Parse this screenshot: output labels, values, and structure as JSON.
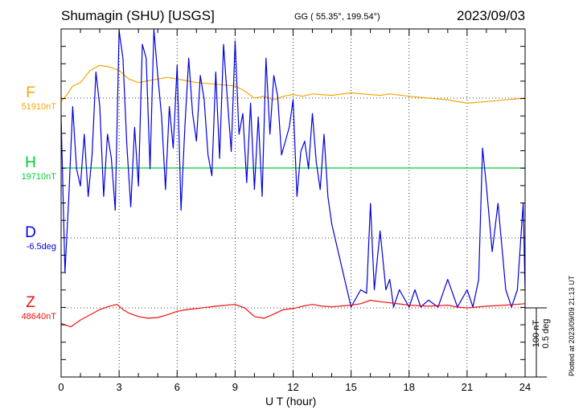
{
  "header": {
    "station": "Shumagin (SHU)  [USGS]",
    "coords": "GG ( 55.35°, 199.54°)",
    "date": "2023/09/03"
  },
  "footer": {
    "plotted": "Plotted at 2023/09/09 21:13 UT",
    "scale_nt": "100 nT",
    "scale_deg": "0.5 deg"
  },
  "chart_data": {
    "type": "line",
    "title": "Shumagin (SHU)  [USGS]",
    "xlabel": "U T (hour)",
    "ylabel": "",
    "xlim": [
      0,
      24
    ],
    "xticks": [
      "0",
      "3",
      "6",
      "9",
      "12",
      "15",
      "18",
      "21",
      "24"
    ],
    "grid": true,
    "scale_bar": {
      "field": "100 nT",
      "declination": "0.5 deg"
    },
    "series": [
      {
        "name": "F",
        "baseline_label": "51910nT",
        "color": "#f5a500",
        "x": [
          0,
          0.3,
          0.6,
          1,
          1.5,
          2,
          2.5,
          3,
          3.5,
          4,
          4.5,
          5,
          5.5,
          6,
          6.5,
          7,
          8,
          9,
          9.5,
          10,
          10.5,
          11,
          11.5,
          12,
          12.5,
          13,
          14,
          15,
          16,
          16.5,
          17,
          18,
          19,
          20,
          21,
          22,
          23,
          24
        ],
        "values": [
          -10,
          10,
          35,
          45,
          80,
          95,
          90,
          80,
          55,
          45,
          50,
          55,
          60,
          55,
          50,
          45,
          40,
          35,
          20,
          0,
          5,
          -5,
          5,
          10,
          5,
          12,
          8,
          15,
          10,
          8,
          12,
          5,
          0,
          -5,
          -15,
          -10,
          -5,
          0
        ]
      },
      {
        "name": "H",
        "baseline_label": "19710nT",
        "color": "#00cc33",
        "x": [
          0,
          24
        ],
        "values": [
          0,
          0
        ]
      },
      {
        "name": "D",
        "baseline_label": "-6.5deg",
        "color": "#0000dd",
        "x": [
          0,
          0.2,
          0.4,
          0.6,
          0.8,
          1.0,
          1.2,
          1.4,
          1.6,
          1.8,
          2.0,
          2.2,
          2.4,
          2.6,
          2.8,
          3.0,
          3.2,
          3.4,
          3.6,
          3.8,
          4.0,
          4.2,
          4.4,
          4.6,
          4.8,
          5.0,
          5.2,
          5.4,
          5.6,
          5.8,
          6.0,
          6.2,
          6.4,
          6.6,
          6.8,
          7.0,
          7.2,
          7.4,
          7.6,
          7.8,
          8.0,
          8.2,
          8.4,
          8.6,
          8.8,
          9.0,
          9.2,
          9.4,
          9.6,
          9.8,
          10.0,
          10.2,
          10.4,
          10.6,
          10.8,
          11.0,
          11.2,
          11.4,
          11.6,
          11.8,
          12.0,
          12.2,
          12.4,
          12.6,
          12.8,
          13.0,
          13.2,
          13.4,
          13.6,
          13.8,
          14.0,
          14.5,
          15.0,
          15.5,
          15.8,
          16.0,
          16.2,
          16.5,
          16.8,
          17.0,
          17.2,
          17.5,
          18.0,
          18.3,
          18.6,
          19.0,
          19.5,
          20.0,
          20.5,
          21.0,
          21.3,
          21.6,
          21.8,
          22.0,
          22.3,
          22.6,
          23.0,
          23.3,
          23.6,
          23.9,
          24.0
        ],
        "values": [
          350,
          -100,
          120,
          380,
          200,
          150,
          300,
          120,
          240,
          480,
          380,
          120,
          300,
          230,
          80,
          600,
          520,
          270,
          90,
          320,
          150,
          560,
          520,
          200,
          620,
          470,
          350,
          140,
          380,
          260,
          500,
          80,
          320,
          520,
          360,
          280,
          470,
          400,
          240,
          180,
          480,
          230,
          560,
          400,
          250,
          570,
          300,
          360,
          160,
          390,
          140,
          350,
          120,
          520,
          300,
          470,
          410,
          240,
          280,
          320,
          400,
          120,
          250,
          280,
          200,
          360,
          220,
          140,
          300,
          120,
          40,
          -80,
          -200,
          -150,
          -160,
          100,
          -150,
          20,
          -150,
          -120,
          -200,
          -150,
          -200,
          -150,
          -200,
          -180,
          -200,
          -120,
          -200,
          -150,
          -200,
          -120,
          260,
          150,
          -40,
          100,
          -150,
          -200,
          -150,
          100,
          -150
        ]
      },
      {
        "name": "Z",
        "baseline_label": "48640nT",
        "color": "#ee1111",
        "x": [
          0,
          0.5,
          1,
          1.5,
          2,
          2.5,
          2.9,
          3.2,
          3.5,
          4,
          4.5,
          5,
          5.5,
          6,
          6.5,
          7,
          8,
          9,
          9.5,
          10,
          10.5,
          11,
          11.5,
          12,
          12.5,
          13,
          13.5,
          14,
          15,
          15.5,
          16,
          16.5,
          17,
          18,
          19,
          20,
          20.5,
          21,
          22,
          23,
          23.5,
          24
        ],
        "values": [
          -45,
          -55,
          -35,
          -20,
          -5,
          5,
          10,
          -5,
          -15,
          -25,
          -30,
          -28,
          -20,
          -10,
          -5,
          -2,
          5,
          10,
          0,
          -25,
          -30,
          -18,
          -5,
          -2,
          5,
          10,
          5,
          3,
          8,
          12,
          22,
          18,
          15,
          8,
          5,
          8,
          2,
          0,
          5,
          8,
          10,
          12
        ]
      }
    ]
  }
}
